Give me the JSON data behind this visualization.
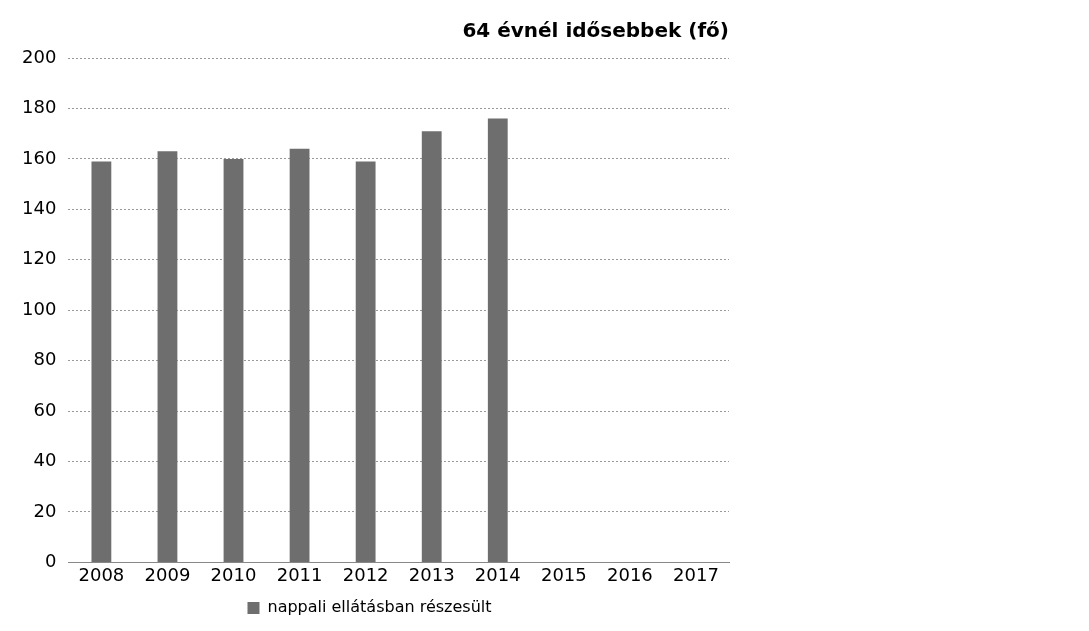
{
  "chart_data": {
    "type": "bar",
    "title": "64 évnél idősebbek (fő)",
    "categories": [
      "2008",
      "2009",
      "2010",
      "2011",
      "2012",
      "2013",
      "2014",
      "2015",
      "2016",
      "2017"
    ],
    "series": [
      {
        "name": "nappali ellátásban részesült",
        "color": "#6e6e6e",
        "values": [
          159,
          163,
          160,
          164,
          159,
          171,
          176,
          null,
          null,
          null
        ]
      }
    ],
    "ylim": [
      0,
      200
    ],
    "yticks": [
      0,
      20,
      40,
      60,
      80,
      100,
      120,
      140,
      160,
      180,
      200
    ],
    "grid": "y",
    "legend": "bottom"
  }
}
